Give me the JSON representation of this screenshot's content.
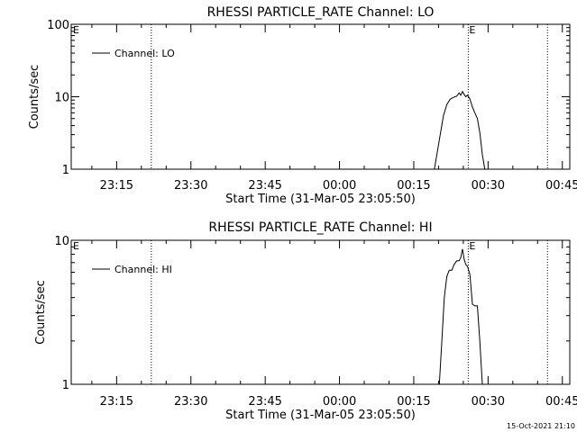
{
  "footer_timestamp": "15-Oct-2021 21:10",
  "chart_data": [
    {
      "type": "line",
      "title": "RHESSI PARTICLE_RATE Channel: LO",
      "xlabel": "Start Time (31-Mar-05 23:05:50)",
      "ylabel": "Counts/sec",
      "yscale": "log",
      "ylim": [
        1,
        100
      ],
      "y_ticks": [
        {
          "v": 1,
          "label": "1"
        },
        {
          "v": 10,
          "label": "10"
        },
        {
          "v": 100,
          "label": "100"
        }
      ],
      "xlim": [
        "23:05:50",
        "00:46:30"
      ],
      "x_ticks": [
        "23:15",
        "23:30",
        "23:45",
        "00:00",
        "00:15",
        "00:30",
        "00:45"
      ],
      "legend": {
        "placement": "top-left",
        "label": "Channel: LO"
      },
      "markers": [
        {
          "time": "23:22:00",
          "label": ""
        },
        {
          "time": "00:26:00",
          "label": "E"
        },
        {
          "time": "00:42:00",
          "label": ""
        }
      ],
      "corner_label": "E",
      "series": [
        {
          "name": "Channel: LO",
          "x": [
            "00:19:10",
            "00:19:40",
            "00:20:20",
            "00:21:00",
            "00:21:40",
            "00:22:20",
            "00:23:00",
            "00:23:40",
            "00:24:10",
            "00:24:30",
            "00:24:50",
            "00:25:10",
            "00:25:30",
            "00:25:50",
            "00:26:20",
            "00:26:50",
            "00:27:20",
            "00:27:50",
            "00:28:20",
            "00:28:50",
            "00:29:20"
          ],
          "values": [
            1.0,
            1.6,
            3.0,
            5.5,
            7.8,
            9.2,
            9.8,
            10.2,
            11.3,
            10.5,
            11.8,
            10.8,
            10.0,
            10.5,
            9.3,
            7.2,
            6.0,
            5.0,
            3.2,
            1.6,
            1.0
          ]
        }
      ]
    },
    {
      "type": "line",
      "title": "RHESSI PARTICLE_RATE Channel: HI",
      "xlabel": "Start Time (31-Mar-05 23:05:50)",
      "ylabel": "Counts/sec",
      "yscale": "log",
      "ylim": [
        1,
        10
      ],
      "y_ticks": [
        {
          "v": 1,
          "label": "1"
        },
        {
          "v": 10,
          "label": "10"
        }
      ],
      "xlim": [
        "23:05:50",
        "00:46:30"
      ],
      "x_ticks": [
        "23:15",
        "23:30",
        "23:45",
        "00:00",
        "00:15",
        "00:30",
        "00:45"
      ],
      "legend": {
        "placement": "top-left",
        "label": "Channel: HI"
      },
      "markers": [
        {
          "time": "23:22:00",
          "label": ""
        },
        {
          "time": "00:26:00",
          "label": "E"
        },
        {
          "time": "00:42:00",
          "label": ""
        }
      ],
      "corner_label": "E",
      "series": [
        {
          "name": "Channel: HI",
          "x": [
            "00:20:10",
            "00:20:40",
            "00:21:10",
            "00:21:40",
            "00:22:10",
            "00:22:40",
            "00:23:10",
            "00:23:40",
            "00:24:10",
            "00:24:30",
            "00:24:50",
            "00:25:10",
            "00:25:30",
            "00:25:50",
            "00:26:20",
            "00:26:50",
            "00:27:20",
            "00:27:50",
            "00:28:20",
            "00:28:50"
          ],
          "values": [
            1.0,
            2.0,
            4.0,
            5.6,
            6.2,
            6.2,
            6.8,
            7.2,
            7.2,
            7.6,
            8.7,
            7.4,
            6.8,
            6.6,
            5.8,
            3.6,
            3.5,
            3.5,
            2.0,
            1.0
          ]
        }
      ]
    }
  ]
}
